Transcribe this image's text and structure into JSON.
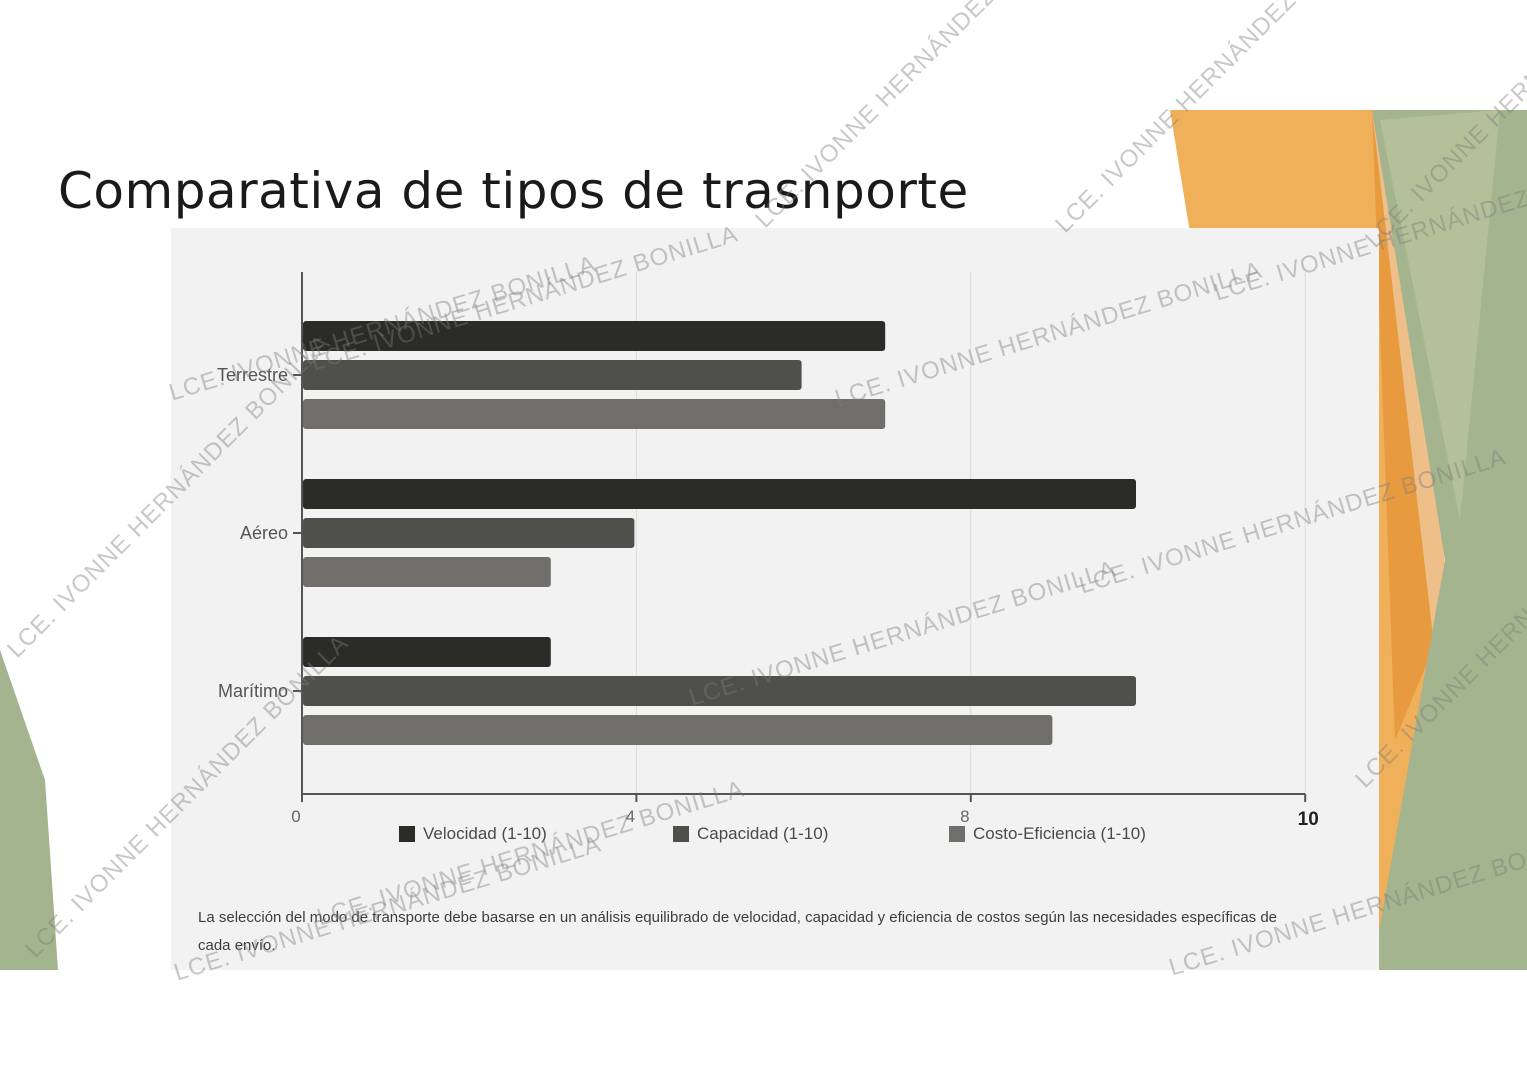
{
  "slide": {
    "title": "Comparativa de tipos de trasnporte",
    "note": "La selección del modo de transporte debe basarse en un análisis equilibrado de velocidad, capacidad y eficiencia de costos según las necesidades específicas de cada envío.",
    "watermark_text": "LCE. IVONNE HERNÁNDEZ BONILLA"
  },
  "colors": {
    "background": "#ffffff",
    "panel": "#f2f2f2",
    "orange_light": "#f0b05a",
    "orange_dark": "#e08a28",
    "sage": "#a3b48e",
    "sage_dark": "#8ea078"
  },
  "chart_data": {
    "type": "bar",
    "orientation": "horizontal",
    "categories": [
      "Terrestre",
      "Aéreo",
      "Marítimo"
    ],
    "series": [
      {
        "name": "Velocidad (1-10)",
        "color": "#2b2b28",
        "values": [
          7,
          10,
          3
        ]
      },
      {
        "name": "Capacidad (1-10)",
        "color": "#4f4f4b",
        "values": [
          6,
          4,
          10
        ]
      },
      {
        "name": "Costo-Eficiencia (1-10)",
        "color": "#6f6e6a",
        "values": [
          7,
          3,
          9
        ]
      }
    ],
    "x_ticks": [
      "0",
      "4",
      "8",
      "10"
    ],
    "xlim": [
      0,
      12
    ],
    "grid": true,
    "legend_position": "bottom"
  }
}
